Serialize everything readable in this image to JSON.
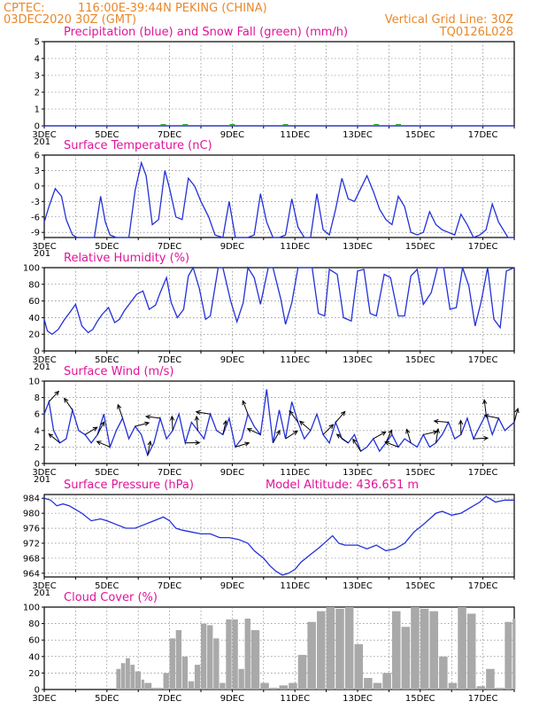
{
  "header": {
    "source": "CPTEC:",
    "location": "116:00E-39:44N   PEKING (CHINA)",
    "run": "03DEC2020 30Z (GMT)",
    "grid_note": "Vertical Grid Line: 30Z",
    "code": "TQ0126L028"
  },
  "x_ticks": [
    "3DEC",
    "5DEC",
    "7DEC",
    "9DEC",
    "11DEC",
    "13DEC",
    "15DEC",
    "17DEC"
  ],
  "x_stub": "201",
  "colors": {
    "title": "#e0149a",
    "header": "#e8882a",
    "line": "#2330d8",
    "cloud": "#a9a9a9",
    "snow": "#22aa22"
  },
  "chart_data": [
    {
      "type": "line",
      "title": "Precipitation (blue) and Snow Fall (green) (mm/h)",
      "ylim": [
        0,
        5
      ],
      "yticks": [
        0,
        1,
        2,
        3,
        4,
        5
      ],
      "x_range_days": [
        3,
        18
      ],
      "series": [
        {
          "name": "Precipitation",
          "x": [
            3,
            18
          ],
          "y": [
            0,
            0
          ]
        },
        {
          "name": "Snow Fall",
          "x": [
            6.8,
            7.5,
            9.0,
            10.7,
            13.6,
            14.3
          ],
          "y": [
            0.05,
            0.05,
            0.05,
            0.05,
            0.05,
            0.05
          ]
        }
      ]
    },
    {
      "type": "line",
      "title": "Surface Temperature (nC)",
      "ylim": [
        -10,
        6
      ],
      "yticks": [
        -9,
        -6,
        -3,
        0,
        3,
        6
      ],
      "series": [
        {
          "name": "Temperature",
          "x": [
            3.0,
            3.15,
            3.35,
            3.55,
            3.7,
            3.9,
            4.05,
            4.2,
            4.4,
            4.6,
            4.8,
            4.95,
            5.1,
            5.3,
            5.5,
            5.7,
            5.9,
            6.1,
            6.25,
            6.45,
            6.65,
            6.85,
            7.0,
            7.2,
            7.4,
            7.6,
            7.8,
            8.0,
            8.25,
            8.45,
            8.7,
            8.9,
            9.1,
            9.3,
            9.5,
            9.7,
            9.9,
            10.1,
            10.3,
            10.5,
            10.7,
            10.9,
            11.1,
            11.3,
            11.5,
            11.7,
            11.9,
            12.1,
            12.3,
            12.5,
            12.7,
            12.9,
            13.1,
            13.3,
            13.5,
            13.7,
            13.9,
            14.1,
            14.3,
            14.5,
            14.7,
            14.9,
            15.1,
            15.3,
            15.5,
            15.7,
            15.9,
            16.1,
            16.3,
            16.5,
            16.7,
            16.9,
            17.1,
            17.3,
            17.5,
            17.8,
            18.0
          ],
          "y": [
            -7,
            -4,
            -0.5,
            -2,
            -6.5,
            -9.5,
            -10,
            -10,
            -10,
            -10,
            -2,
            -7,
            -9.5,
            -10,
            -10,
            -10,
            -0.8,
            4.5,
            2,
            -7.5,
            -6.5,
            3,
            -0.5,
            -6,
            -6.5,
            1.5,
            0,
            -3,
            -6,
            -9.5,
            -10,
            -3,
            -10,
            -10,
            -10,
            -9.5,
            -1.5,
            -7,
            -10,
            -10,
            -9.5,
            -2.5,
            -8,
            -10,
            -10,
            -1.5,
            -8.5,
            -9.5,
            -4.5,
            1.5,
            -2.5,
            -3,
            -0.5,
            2,
            -1,
            -4.5,
            -6.5,
            -7.5,
            -2,
            -4,
            -9,
            -9.5,
            -9,
            -5,
            -7.5,
            -8.5,
            -9,
            -9.5,
            -5.5,
            -7.5,
            -10,
            -9.5,
            -8.5,
            -3.5,
            -7,
            -10,
            -10
          ]
        }
      ]
    },
    {
      "type": "line",
      "title": "Relative Humidity (%)",
      "ylim": [
        0,
        100
      ],
      "yticks": [
        0,
        20,
        40,
        60,
        80,
        100
      ],
      "series": [
        {
          "name": "Relative Humidity",
          "x": [
            3.0,
            3.1,
            3.25,
            3.45,
            3.65,
            3.85,
            4.0,
            4.2,
            4.4,
            4.55,
            4.7,
            4.85,
            5.05,
            5.25,
            5.4,
            5.55,
            5.75,
            5.95,
            6.15,
            6.35,
            6.55,
            6.7,
            6.9,
            7.05,
            7.25,
            7.45,
            7.6,
            7.75,
            7.95,
            8.15,
            8.3,
            8.55,
            8.7,
            8.95,
            9.15,
            9.35,
            9.5,
            9.7,
            9.9,
            10.15,
            10.3,
            10.55,
            10.7,
            10.9,
            11.1,
            11.35,
            11.55,
            11.75,
            11.95,
            12.1,
            12.35,
            12.55,
            12.8,
            13.0,
            13.2,
            13.4,
            13.6,
            13.85,
            14.05,
            14.3,
            14.5,
            14.7,
            14.9,
            15.1,
            15.35,
            15.55,
            15.75,
            15.95,
            16.15,
            16.35,
            16.55,
            16.75,
            16.95,
            17.15,
            17.35,
            17.55,
            17.75,
            18.0
          ],
          "y": [
            38,
            24,
            20,
            26,
            38,
            48,
            56,
            30,
            22,
            26,
            36,
            44,
            52,
            34,
            38,
            48,
            58,
            68,
            72,
            50,
            55,
            70,
            88,
            58,
            40,
            50,
            90,
            100,
            75,
            38,
            42,
            100,
            100,
            60,
            35,
            58,
            100,
            88,
            56,
            100,
            100,
            62,
            32,
            58,
            100,
            100,
            100,
            45,
            42,
            98,
            92,
            40,
            36,
            96,
            98,
            45,
            42,
            92,
            88,
            42,
            42,
            90,
            98,
            56,
            70,
            100,
            100,
            50,
            52,
            100,
            78,
            30,
            60,
            100,
            38,
            28,
            96,
            100
          ]
        }
      ]
    },
    {
      "type": "line",
      "title": "Surface Wind (m/s)",
      "ylim": [
        0,
        10
      ],
      "yticks": [
        0,
        2,
        4,
        6,
        8,
        10
      ],
      "series": [
        {
          "name": "Wind speed",
          "x": [
            3.0,
            3.15,
            3.3,
            3.5,
            3.7,
            3.9,
            4.1,
            4.3,
            4.5,
            4.7,
            4.9,
            5.1,
            5.3,
            5.5,
            5.7,
            5.9,
            6.1,
            6.3,
            6.5,
            6.7,
            6.9,
            7.1,
            7.3,
            7.5,
            7.7,
            7.9,
            8.1,
            8.3,
            8.5,
            8.7,
            8.9,
            9.1,
            9.3,
            9.5,
            9.7,
            9.9,
            10.1,
            10.3,
            10.5,
            10.7,
            10.9,
            11.1,
            11.3,
            11.5,
            11.7,
            11.9,
            12.1,
            12.3,
            12.5,
            12.7,
            12.9,
            13.1,
            13.3,
            13.5,
            13.7,
            13.9,
            14.1,
            14.3,
            14.5,
            14.7,
            14.9,
            15.1,
            15.3,
            15.5,
            15.7,
            15.9,
            16.1,
            16.3,
            16.5,
            16.7,
            16.9,
            17.1,
            17.3,
            17.5,
            17.7,
            18.0
          ],
          "y": [
            6,
            7.5,
            4,
            2.5,
            3,
            6.5,
            4,
            3.5,
            2.5,
            3.5,
            6,
            2,
            4,
            5.5,
            3,
            4.5,
            3.5,
            1,
            2.5,
            5.5,
            3,
            4,
            6,
            2.5,
            5,
            4,
            3,
            6,
            4,
            3.5,
            5.5,
            2,
            3,
            6,
            4.5,
            3.5,
            9,
            2.5,
            6.5,
            3,
            7.5,
            5,
            3,
            4,
            6,
            3.5,
            2.5,
            5,
            3,
            2.5,
            3.5,
            1.5,
            2,
            3,
            1.5,
            2.5,
            3.5,
            2,
            3,
            2.5,
            2,
            3.5,
            2,
            2.5,
            3.5,
            5,
            3,
            3.5,
            5.5,
            3,
            4.5,
            6,
            3.5,
            5.5,
            4,
            5
          ]
        }
      ]
    },
    {
      "type": "line",
      "title": "Surface Pressure (hPa)",
      "subtitle": "Model Altitude: 436.651 m",
      "ylim": [
        963,
        985
      ],
      "yticks": [
        964,
        968,
        972,
        976,
        980,
        984
      ],
      "series": [
        {
          "name": "Pressure",
          "x": [
            3.0,
            3.2,
            3.4,
            3.6,
            3.8,
            4.0,
            4.2,
            4.5,
            4.8,
            5.0,
            5.3,
            5.6,
            5.9,
            6.2,
            6.5,
            6.8,
            7.0,
            7.2,
            7.4,
            7.7,
            8.0,
            8.3,
            8.6,
            8.9,
            9.2,
            9.5,
            9.7,
            10.0,
            10.2,
            10.4,
            10.6,
            10.8,
            11.0,
            11.2,
            11.5,
            11.8,
            12.0,
            12.2,
            12.4,
            12.6,
            12.8,
            13.0,
            13.3,
            13.6,
            13.9,
            14.2,
            14.5,
            14.8,
            15.1,
            15.3,
            15.5,
            15.7,
            16.0,
            16.3,
            16.6,
            16.9,
            17.1,
            17.4,
            17.7,
            18.0
          ],
          "y": [
            984,
            983.5,
            982,
            982.5,
            982,
            981,
            980,
            978,
            978.5,
            978,
            977,
            976,
            976,
            977,
            978,
            979,
            978,
            976,
            975.5,
            975,
            974.5,
            974.5,
            973.5,
            973.5,
            973,
            972,
            970,
            968,
            966,
            964.5,
            963.5,
            964,
            965,
            967,
            969,
            971,
            972.5,
            974,
            972,
            971.5,
            971.5,
            971.5,
            970.5,
            971.5,
            970,
            970.5,
            972,
            975,
            977,
            978.5,
            980,
            980.5,
            979.5,
            980,
            981.5,
            983,
            984.5,
            983,
            983.5,
            983.5
          ]
        }
      ]
    },
    {
      "type": "bar",
      "title": "Cloud Cover (%)",
      "ylim": [
        0,
        100
      ],
      "yticks": [
        0,
        20,
        40,
        60,
        80,
        100
      ],
      "x_days": [
        5.3,
        5.45,
        5.6,
        5.75,
        5.9,
        6.1,
        6.2,
        6.45,
        6.8,
        7.0,
        7.2,
        7.4,
        7.6,
        7.8,
        8.0,
        8.2,
        8.4,
        8.6,
        8.8,
        9.0,
        9.2,
        9.4,
        9.6,
        9.9,
        10.2,
        10.5,
        10.8,
        11.1,
        11.4,
        11.7,
        12.0,
        12.3,
        12.6,
        12.9,
        13.2,
        13.5,
        13.8,
        14.1,
        14.4,
        14.7,
        15.0,
        15.3,
        15.6,
        15.9,
        16.2,
        16.5,
        16.8,
        17.1,
        17.4,
        17.7,
        17.95
      ],
      "values": [
        25,
        32,
        38,
        30,
        22,
        12,
        8,
        2,
        20,
        62,
        72,
        40,
        10,
        30,
        80,
        78,
        62,
        8,
        85,
        85,
        25,
        86,
        72,
        8,
        2,
        5,
        8,
        42,
        82,
        95,
        100,
        98,
        100,
        55,
        14,
        8,
        20,
        95,
        76,
        100,
        98,
        95,
        40,
        8,
        100,
        92,
        4,
        25,
        2,
        82,
        86
      ]
    }
  ]
}
